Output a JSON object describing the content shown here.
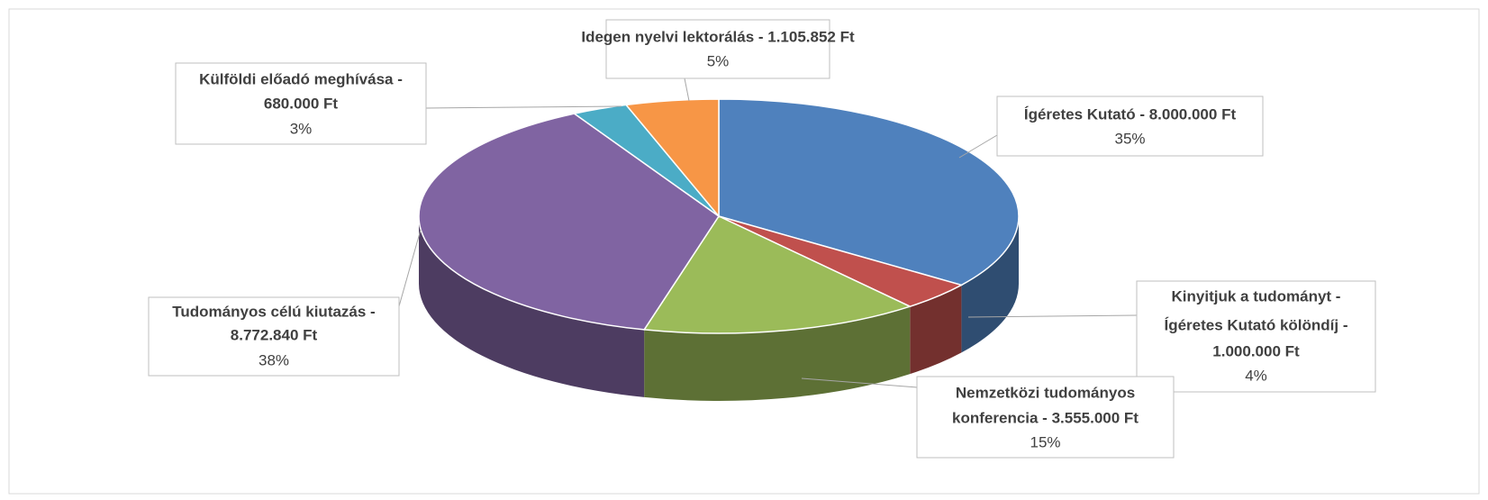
{
  "chart_data": {
    "type": "pie3d",
    "categories": [
      [
        "Ígéretes Kutató - 8.000.000 Ft"
      ],
      [
        "Kinyitjuk a tudományt -",
        "Ígéretes Kutató kölöndíj -",
        "1.000.000 Ft"
      ],
      [
        "Nemzetközi tudományos",
        "konferencia - 3.555.000 Ft"
      ],
      [
        "Tudományos célú kiutazás -",
        "8.772.840 Ft"
      ],
      [
        "Külföldi előadó meghívása -",
        "680.000 Ft"
      ],
      [
        "Idegen nyelvi lektorálás - 1.105.852 Ft"
      ]
    ],
    "values": [
      35,
      4,
      15,
      38,
      3,
      5
    ],
    "value_labels": [
      "35%",
      "4%",
      "15%",
      "38%",
      "3%",
      "5%"
    ],
    "colors": [
      "#4f81bd",
      "#c0504d",
      "#9bbb59",
      "#8064a2",
      "#4bacc6",
      "#f79646"
    ]
  }
}
